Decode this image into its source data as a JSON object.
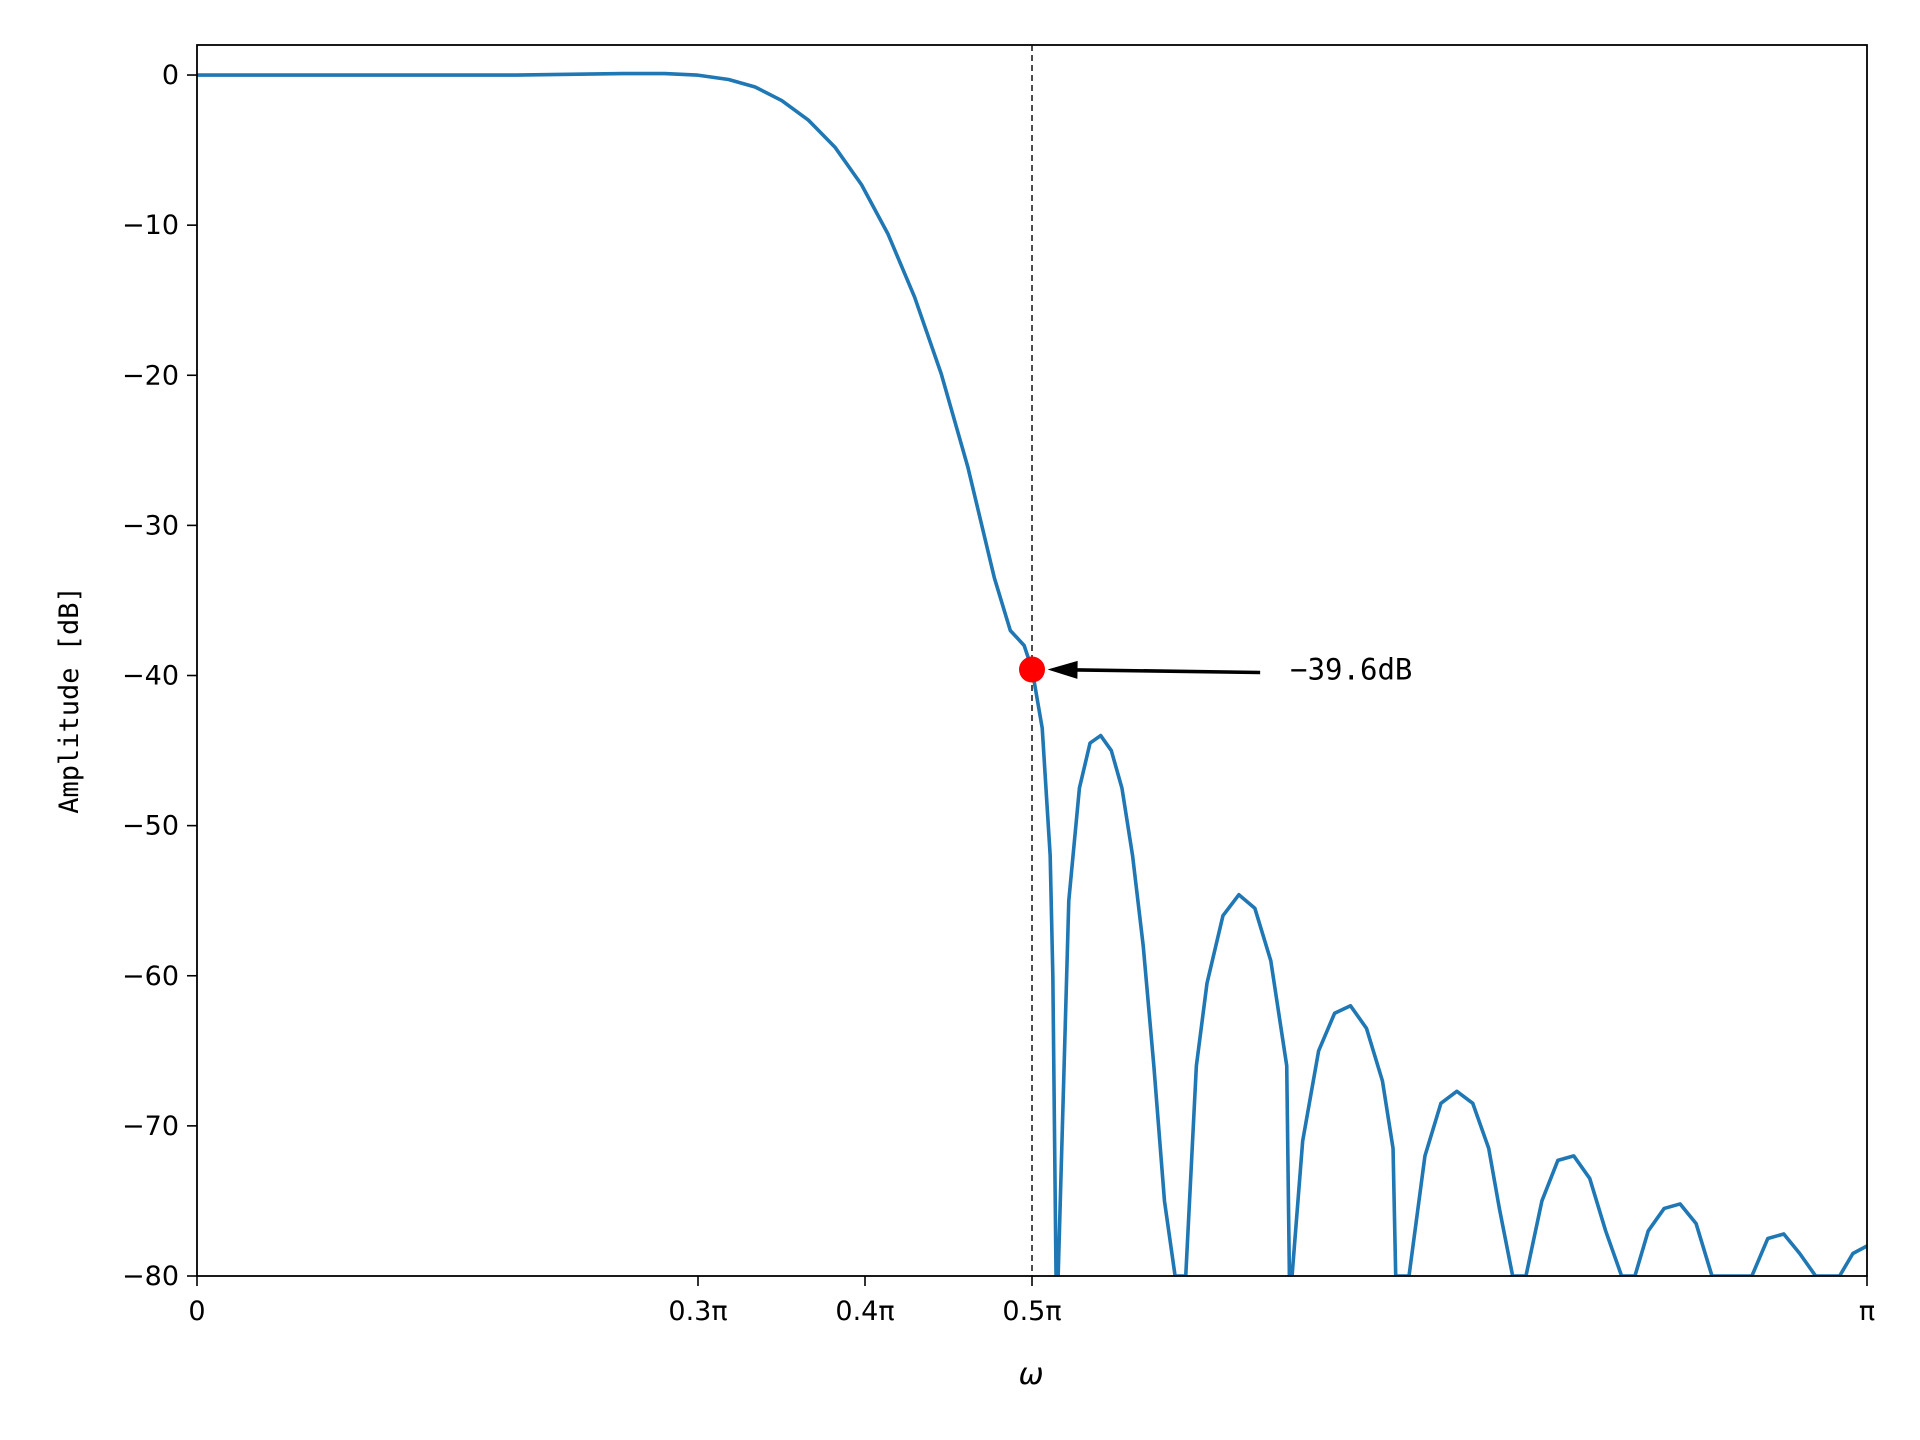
{
  "chart_data": {
    "type": "line",
    "title": "",
    "xlabel": "ω",
    "ylabel": "Amplitude [dB]",
    "xlim": [
      0,
      3.14159
    ],
    "ylim": [
      -80,
      2
    ],
    "grid": false,
    "x_ticks": [
      {
        "value": 0,
        "label": "0"
      },
      {
        "value": 0.94248,
        "label": "0.3π"
      },
      {
        "value": 1.25664,
        "label": "0.4π"
      },
      {
        "value": 1.5708,
        "label": "0.5π"
      },
      {
        "value": 3.14159,
        "label": "π"
      }
    ],
    "y_ticks": [
      {
        "value": 0,
        "label": "0"
      },
      {
        "value": -10,
        "label": "−10"
      },
      {
        "value": -20,
        "label": "−20"
      },
      {
        "value": -30,
        "label": "−30"
      },
      {
        "value": -40,
        "label": "−40"
      },
      {
        "value": -50,
        "label": "−50"
      },
      {
        "value": -60,
        "label": "−60"
      },
      {
        "value": -70,
        "label": "−70"
      },
      {
        "value": -80,
        "label": "−80"
      }
    ],
    "series": [
      {
        "color": "#1f77b4",
        "x": [
          0,
          0.1,
          0.2,
          0.3,
          0.4,
          0.5,
          0.6,
          0.7,
          0.8,
          0.88,
          0.94,
          1.0,
          1.05,
          1.1,
          1.15,
          1.2,
          1.25,
          1.3,
          1.35,
          1.4,
          1.45,
          1.5,
          1.53,
          1.556,
          1.571,
          1.59,
          1.605,
          1.61,
          1.613,
          1.616,
          1.62,
          1.64,
          1.66,
          1.68,
          1.7,
          1.72,
          1.74,
          1.76,
          1.78,
          1.8,
          1.82,
          1.84,
          1.855,
          1.86,
          1.88,
          1.9,
          1.93,
          1.96,
          1.99,
          2.02,
          2.05,
          2.055,
          2.06,
          2.08,
          2.11,
          2.14,
          2.17,
          2.2,
          2.23,
          2.25,
          2.255,
          2.28,
          2.31,
          2.34,
          2.37,
          2.4,
          2.43,
          2.45,
          2.475,
          2.5,
          2.53,
          2.56,
          2.59,
          2.62,
          2.65,
          2.68,
          2.705,
          2.73,
          2.76,
          2.79,
          2.82,
          2.85,
          2.87,
          2.925,
          2.955,
          2.985,
          3.015,
          3.045,
          3.09,
          3.115,
          3.14159
        ],
        "y": [
          0,
          0,
          0,
          0,
          0,
          0,
          0,
          0.05,
          0.1,
          0.1,
          0,
          -0.3,
          -0.8,
          -1.7,
          -3.0,
          -4.8,
          -7.3,
          -10.6,
          -14.8,
          -19.9,
          -26.1,
          -33.5,
          -37.0,
          -38.0,
          -39.6,
          -43.5,
          -52.0,
          -60.0,
          -70.0,
          -80.0,
          -80.0,
          -55.0,
          -47.5,
          -44.5,
          -44.0,
          -45.0,
          -47.5,
          -52.0,
          -58.0,
          -66.0,
          -75.0,
          -80.0,
          -80.0,
          -80.0,
          -66.0,
          -60.5,
          -56.0,
          -54.6,
          -55.5,
          -59.0,
          -66.0,
          -80.0,
          -80.0,
          -71.0,
          -65.0,
          -62.5,
          -62.0,
          -63.5,
          -67.0,
          -71.5,
          -80.0,
          -80.0,
          -72.0,
          -68.5,
          -67.7,
          -68.5,
          -71.5,
          -75.5,
          -80.0,
          -80.0,
          -75.0,
          -72.3,
          -72.0,
          -73.5,
          -77.0,
          -80.0,
          -80.0,
          -77.0,
          -75.5,
          -75.2,
          -76.5,
          -80.0,
          -80.0,
          -80.0,
          -77.5,
          -77.2,
          -78.5,
          -80.0,
          -80.0,
          -78.5,
          -78.0
        ]
      }
    ],
    "vline": {
      "x": 1.5708,
      "style": "dashed",
      "color": "#000000"
    },
    "marker": {
      "x": 1.5708,
      "y": -39.6,
      "color": "#ff0000"
    },
    "annotation": {
      "text": "−39.6dB",
      "text_x": 2.0,
      "text_y": -39.6,
      "arrow_from_x": 2.0,
      "arrow_from_y": -39.8,
      "arrow_to_x": 1.6,
      "arrow_to_y": -39.6
    }
  }
}
